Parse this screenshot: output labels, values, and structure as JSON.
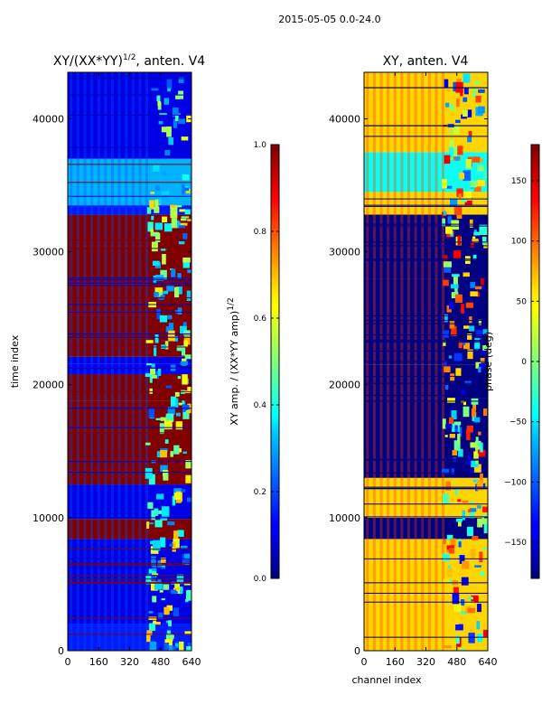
{
  "figure": {
    "suptitle": "2015-05-05 0.0-24.0"
  },
  "chart_data": [
    {
      "type": "heatmap",
      "panel": "left",
      "title_main": "XY/(XX*YY)",
      "title_exp": "1/2",
      "title_suffix": ", anten. V4",
      "ylabel": "time index",
      "xlabel": "",
      "xlim": [
        0,
        640
      ],
      "ylim": [
        0,
        43500
      ],
      "xticks": [
        "0",
        "160",
        "320",
        "480",
        "640"
      ],
      "xtick_values": [
        0,
        160,
        320,
        480,
        640
      ],
      "yticks": [
        "0",
        "10000",
        "20000",
        "30000",
        "40000"
      ],
      "ytick_values": [
        0,
        10000,
        20000,
        30000,
        40000
      ],
      "colormap": "jet",
      "colorbar": {
        "label_main": "XY amp. / (XX*YY amp)",
        "label_exp": "1/2",
        "range": [
          0.0,
          1.0
        ],
        "ticks": [
          "0.0",
          "0.2",
          "0.4",
          "0.6",
          "0.8",
          "1.0"
        ],
        "tick_values": [
          0.0,
          0.2,
          0.4,
          0.6,
          0.8,
          1.0
        ]
      },
      "bands": [
        {
          "from": 0,
          "to": 2000,
          "value": 0.15
        },
        {
          "from": 2000,
          "to": 8400,
          "value": 0.1
        },
        {
          "from": 8400,
          "to": 9900,
          "value": 1.0
        },
        {
          "from": 9900,
          "to": 12500,
          "value": 0.1
        },
        {
          "from": 12500,
          "to": 18800,
          "value": 1.0
        },
        {
          "from": 18800,
          "to": 20800,
          "value": 1.0
        },
        {
          "from": 20800,
          "to": 21600,
          "value": 0.12
        },
        {
          "from": 21600,
          "to": 22100,
          "value": 0.1
        },
        {
          "from": 22100,
          "to": 28000,
          "value": 1.0
        },
        {
          "from": 28000,
          "to": 32800,
          "value": 1.0
        },
        {
          "from": 32800,
          "to": 33500,
          "value": 0.15
        },
        {
          "from": 33500,
          "to": 37000,
          "value": 0.3
        },
        {
          "from": 37000,
          "to": 43500,
          "value": 0.1
        }
      ]
    },
    {
      "type": "heatmap",
      "panel": "right",
      "title": "XY, anten. V4",
      "xlabel": "channel index",
      "ylabel": "",
      "xlim": [
        0,
        640
      ],
      "ylim": [
        0,
        43500
      ],
      "xticks": [
        "0",
        "160",
        "320",
        "480",
        "640"
      ],
      "xtick_values": [
        0,
        160,
        320,
        480,
        640
      ],
      "yticks": [
        "0",
        "10000",
        "20000",
        "30000",
        "40000"
      ],
      "ytick_values": [
        0,
        10000,
        20000,
        30000,
        40000
      ],
      "colormap": "jet",
      "colorbar": {
        "label": "phase (deg)",
        "range": [
          -180,
          180
        ],
        "ticks": [
          "−150",
          "−100",
          "−50",
          "0",
          "50",
          "100",
          "150"
        ],
        "tick_values": [
          -150,
          -100,
          -50,
          0,
          50,
          100,
          150
        ]
      },
      "bands": [
        {
          "from": 0,
          "to": 8400,
          "value": 60
        },
        {
          "from": 8400,
          "to": 10000,
          "value": -180
        },
        {
          "from": 10000,
          "to": 13000,
          "value": 60
        },
        {
          "from": 13000,
          "to": 19000,
          "value": -180
        },
        {
          "from": 19000,
          "to": 21500,
          "value": -180
        },
        {
          "from": 21500,
          "to": 28000,
          "value": -180
        },
        {
          "from": 28000,
          "to": 32800,
          "value": -180
        },
        {
          "from": 32800,
          "to": 34500,
          "value": 60
        },
        {
          "from": 34500,
          "to": 37500,
          "value": -40
        },
        {
          "from": 37500,
          "to": 43500,
          "value": 60
        }
      ]
    }
  ]
}
